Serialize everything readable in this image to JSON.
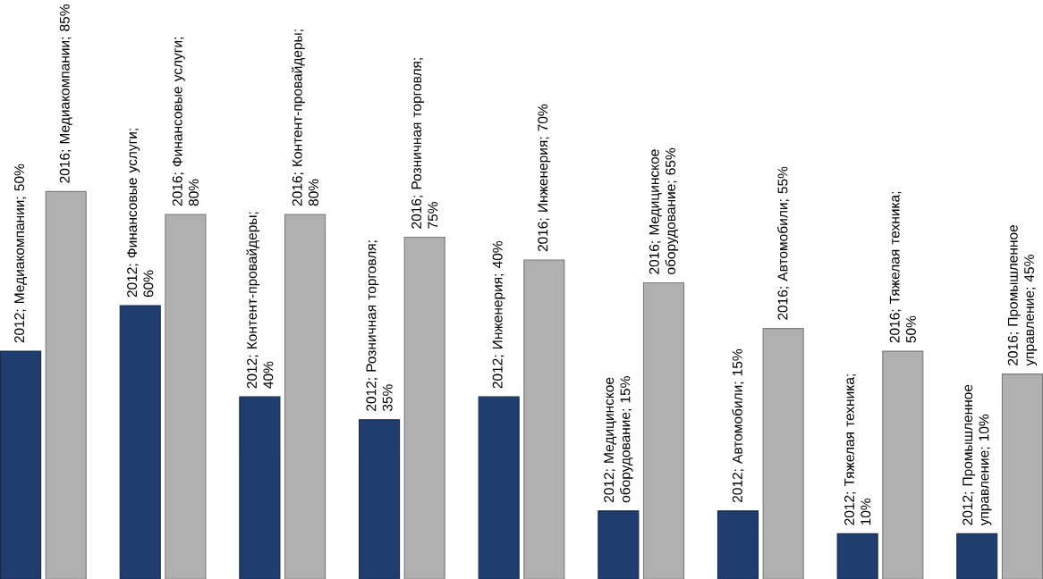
{
  "chart_data": {
    "type": "bar",
    "categories": [
      null,
      null,
      null,
      null,
      null,
      null,
      null,
      null,
      null
    ],
    "series": [
      {
        "color": "#1f3d6e",
        "values": [
          50,
          60,
          40,
          35,
          40,
          15,
          15,
          10,
          10
        ],
        "value_labels": [
          "2012; Медиакомпании; 50%",
          "2012; Финансовые услуги; 60%",
          "2012; Контент-провайдеры; 40%",
          "2012; Розничная торговля; 35%",
          "2012; Инженерия; 40%",
          "2012; Медицинское оборудование; 15%",
          "2012; Автомобили; 15%",
          "2012; Тяжелая техника; 10%",
          "2012; Промышленное управление; 10%"
        ]
      },
      {
        "color": "#b0b0b0",
        "values": [
          85,
          80,
          80,
          75,
          70,
          65,
          55,
          50,
          45
        ],
        "value_labels": [
          "2016; Медиакомпании; 85%",
          "2016; Финансовые услуги; 80%",
          "2016; Контент-провайдеры; 80%",
          "2016; Розничная торговля; 75%",
          "2016; Инженерия; 70%",
          "2016; Медицинское оборудование; 65%",
          "2016; Автомобили; 55%",
          "2016; Тяжелая техника; 50%",
          "2016; Промышленное управление; 45%"
        ]
      }
    ]
  }
}
